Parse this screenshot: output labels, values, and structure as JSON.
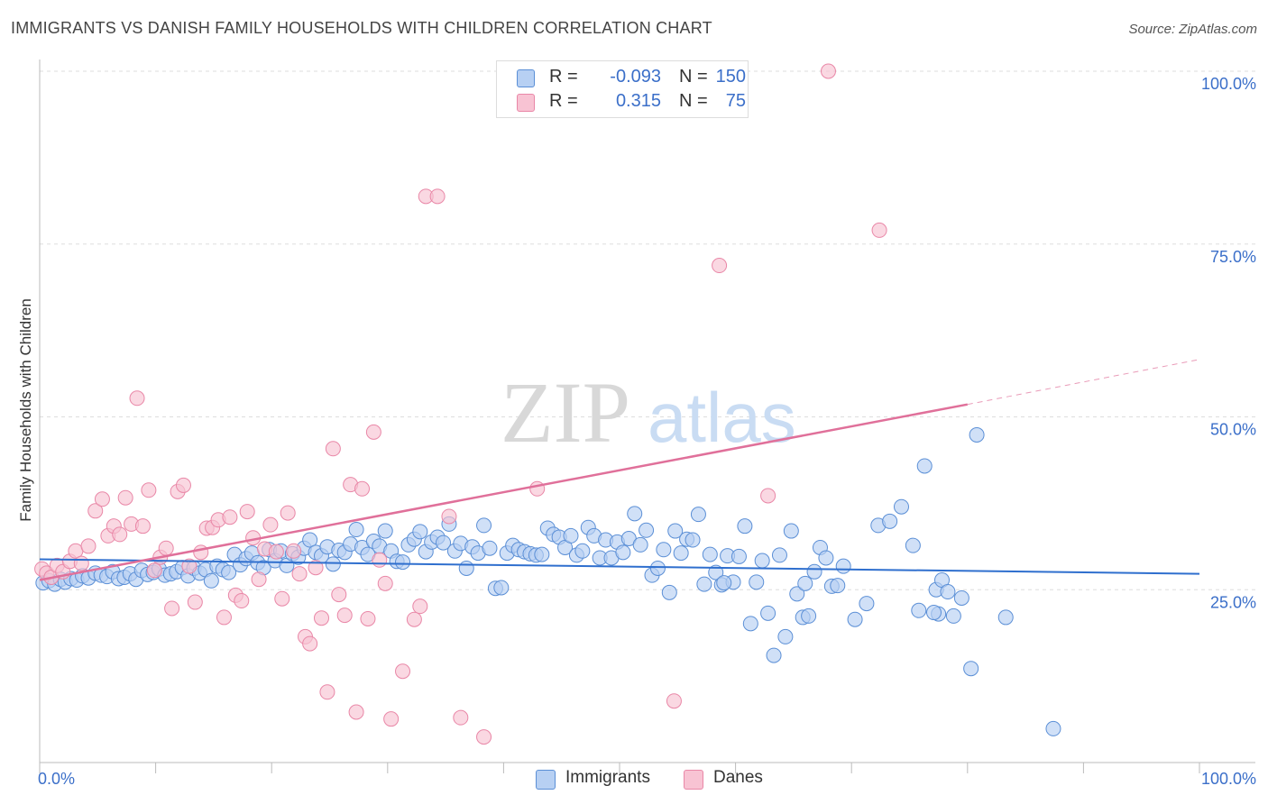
{
  "header": {
    "title": "IMMIGRANTS VS DANISH FAMILY HOUSEHOLDS WITH CHILDREN CORRELATION CHART",
    "source": "Source: ZipAtlas.com"
  },
  "legend": {
    "rows": [
      {
        "r_label": "R =",
        "r_value": "-0.093",
        "n_label": "N =",
        "n_value": "150"
      },
      {
        "r_label": "R =",
        "r_value": "0.315",
        "n_label": "N =",
        "n_value": "75"
      }
    ]
  },
  "colors": {
    "immigrants_fill": "#b7d0f3",
    "immigrants_stroke": "#5b8fd6",
    "immigrants_line": "#2f6fce",
    "danes_fill": "#f8c3d3",
    "danes_stroke": "#e987a7",
    "danes_line": "#e0709a",
    "axis_label": "#3b6fc9",
    "grid": "#dddddd"
  },
  "watermark": {
    "zip": "ZIP",
    "atlas": "atlas"
  },
  "chart_data": {
    "type": "scatter",
    "title": "IMMIGRANTS VS DANISH FAMILY HOUSEHOLDS WITH CHILDREN CORRELATION CHART",
    "xlabel": "",
    "ylabel": "Family Households with Children",
    "xlim": [
      0,
      100
    ],
    "ylim": [
      0,
      100
    ],
    "x_tick_labels": [
      "0.0%",
      "100.0%"
    ],
    "y_tick_labels": [
      "25.0%",
      "50.0%",
      "75.0%",
      "100.0%"
    ],
    "y_ticks": [
      25,
      50,
      75,
      100
    ],
    "grid": true,
    "legend_position": "bottom",
    "series": [
      {
        "name": "Immigrants",
        "r": -0.093,
        "n": 150,
        "trend": {
          "x0": 0,
          "y0": 29.4,
          "x1": 100,
          "y1": 27.3
        },
        "points": [
          [
            0.3,
            26.0
          ],
          [
            0.8,
            26.3
          ],
          [
            1.3,
            25.8
          ],
          [
            1.8,
            26.5
          ],
          [
            2.2,
            26.1
          ],
          [
            2.7,
            26.6
          ],
          [
            3.2,
            26.4
          ],
          [
            3.7,
            27.0
          ],
          [
            4.2,
            26.7
          ],
          [
            4.8,
            27.4
          ],
          [
            5.3,
            27.1
          ],
          [
            5.8,
            26.9
          ],
          [
            6.3,
            27.6
          ],
          [
            6.8,
            26.6
          ],
          [
            7.3,
            26.8
          ],
          [
            7.8,
            27.3
          ],
          [
            8.3,
            26.5
          ],
          [
            8.8,
            27.8
          ],
          [
            9.3,
            27.2
          ],
          [
            9.8,
            27.5
          ],
          [
            10.3,
            28.0
          ],
          [
            10.8,
            27.1
          ],
          [
            11.3,
            27.3
          ],
          [
            11.8,
            27.6
          ],
          [
            12.3,
            28.2
          ],
          [
            12.8,
            27.0
          ],
          [
            13.3,
            28.1
          ],
          [
            13.8,
            27.4
          ],
          [
            14.3,
            27.9
          ],
          [
            14.8,
            26.3
          ],
          [
            15.3,
            28.4
          ],
          [
            15.8,
            27.9
          ],
          [
            16.3,
            27.5
          ],
          [
            16.8,
            30.1
          ],
          [
            17.3,
            28.6
          ],
          [
            17.8,
            29.5
          ],
          [
            18.3,
            30.3
          ],
          [
            18.8,
            28.9
          ],
          [
            19.3,
            28.2
          ],
          [
            19.8,
            30.8
          ],
          [
            20.3,
            29.2
          ],
          [
            20.8,
            30.6
          ],
          [
            21.3,
            28.5
          ],
          [
            21.8,
            30.2
          ],
          [
            22.3,
            29.7
          ],
          [
            22.8,
            31.0
          ],
          [
            23.3,
            32.2
          ],
          [
            23.8,
            30.4
          ],
          [
            24.3,
            29.9
          ],
          [
            24.8,
            31.2
          ],
          [
            25.3,
            28.7
          ],
          [
            25.8,
            30.7
          ],
          [
            26.3,
            30.4
          ],
          [
            26.8,
            31.6
          ],
          [
            27.3,
            33.7
          ],
          [
            27.8,
            31.1
          ],
          [
            28.3,
            30.1
          ],
          [
            28.8,
            32.0
          ],
          [
            29.3,
            31.3
          ],
          [
            29.8,
            33.5
          ],
          [
            30.3,
            30.6
          ],
          [
            30.8,
            29.1
          ],
          [
            31.3,
            29.0
          ],
          [
            31.8,
            31.5
          ],
          [
            32.3,
            32.3
          ],
          [
            32.8,
            33.4
          ],
          [
            33.3,
            30.5
          ],
          [
            33.8,
            31.9
          ],
          [
            34.3,
            32.6
          ],
          [
            34.8,
            31.8
          ],
          [
            35.3,
            34.5
          ],
          [
            35.8,
            30.6
          ],
          [
            36.3,
            31.7
          ],
          [
            36.8,
            28.1
          ],
          [
            37.3,
            31.2
          ],
          [
            37.8,
            30.3
          ],
          [
            38.3,
            34.3
          ],
          [
            38.8,
            31.0
          ],
          [
            39.3,
            25.2
          ],
          [
            39.8,
            25.3
          ],
          [
            40.3,
            30.3
          ],
          [
            40.8,
            31.4
          ],
          [
            41.3,
            30.8
          ],
          [
            41.8,
            30.5
          ],
          [
            42.3,
            30.2
          ],
          [
            42.8,
            30.0
          ],
          [
            43.3,
            30.1
          ],
          [
            43.8,
            33.9
          ],
          [
            44.3,
            33.0
          ],
          [
            44.8,
            32.6
          ],
          [
            45.3,
            31.1
          ],
          [
            45.8,
            32.8
          ],
          [
            46.3,
            30.0
          ],
          [
            46.8,
            30.6
          ],
          [
            47.3,
            34.0
          ],
          [
            47.8,
            32.8
          ],
          [
            48.3,
            29.6
          ],
          [
            48.8,
            32.2
          ],
          [
            49.3,
            29.6
          ],
          [
            49.8,
            31.9
          ],
          [
            50.3,
            30.4
          ],
          [
            50.8,
            32.4
          ],
          [
            51.3,
            36.0
          ],
          [
            51.8,
            31.5
          ],
          [
            52.3,
            33.6
          ],
          [
            52.8,
            27.1
          ],
          [
            53.3,
            28.1
          ],
          [
            53.8,
            30.8
          ],
          [
            54.3,
            24.6
          ],
          [
            54.8,
            33.5
          ],
          [
            55.3,
            30.3
          ],
          [
            55.8,
            32.3
          ],
          [
            56.3,
            32.2
          ],
          [
            56.8,
            35.9
          ],
          [
            57.3,
            25.8
          ],
          [
            57.8,
            30.1
          ],
          [
            58.3,
            27.5
          ],
          [
            58.8,
            25.7
          ],
          [
            59.3,
            29.9
          ],
          [
            59.8,
            26.1
          ],
          [
            60.3,
            29.8
          ],
          [
            60.8,
            34.2
          ],
          [
            61.3,
            20.1
          ],
          [
            61.8,
            26.1
          ],
          [
            62.3,
            29.2
          ],
          [
            62.8,
            21.6
          ],
          [
            63.3,
            15.5
          ],
          [
            63.8,
            30.0
          ],
          [
            64.3,
            18.2
          ],
          [
            64.8,
            33.5
          ],
          [
            65.3,
            24.4
          ],
          [
            65.8,
            21.0
          ],
          [
            66.3,
            21.2
          ],
          [
            66.8,
            27.6
          ],
          [
            67.3,
            31.1
          ],
          [
            67.8,
            29.6
          ],
          [
            68.3,
            25.5
          ],
          [
            68.8,
            25.6
          ],
          [
            69.3,
            28.4
          ],
          [
            70.3,
            20.7
          ],
          [
            71.3,
            23.0
          ],
          [
            72.3,
            34.3
          ],
          [
            73.3,
            34.9
          ],
          [
            74.3,
            37.0
          ],
          [
            75.3,
            31.4
          ],
          [
            76.3,
            42.9
          ],
          [
            77.3,
            25.0
          ],
          [
            77.8,
            26.4
          ],
          [
            78.3,
            24.7
          ],
          [
            80.3,
            13.6
          ],
          [
            75.8,
            22.0
          ],
          [
            77.5,
            21.5
          ],
          [
            78.8,
            21.2
          ],
          [
            79.5,
            23.8
          ],
          [
            83.3,
            21.0
          ],
          [
            87.4,
            4.9
          ],
          [
            77.1,
            21.7
          ],
          [
            80.8,
            47.4
          ],
          [
            59.0,
            26.0
          ],
          [
            66.0,
            25.9
          ]
        ]
      },
      {
        "name": "Danes",
        "r": 0.315,
        "n": 75,
        "trend": {
          "x0": 0,
          "y0": 26.4,
          "x1": 80,
          "y1": 51.8
        },
        "trend_dashed": {
          "x0": 80,
          "y0": 51.8,
          "x1": 100,
          "y1": 58.3
        },
        "points": [
          [
            0.2,
            28.0
          ],
          [
            0.6,
            27.4
          ],
          [
            1.0,
            26.8
          ],
          [
            1.5,
            28.5
          ],
          [
            2.0,
            27.6
          ],
          [
            2.6,
            29.1
          ],
          [
            3.1,
            30.6
          ],
          [
            3.6,
            28.8
          ],
          [
            4.2,
            31.3
          ],
          [
            4.8,
            36.4
          ],
          [
            5.4,
            38.1
          ],
          [
            5.9,
            32.8
          ],
          [
            6.4,
            34.2
          ],
          [
            6.9,
            33.0
          ],
          [
            7.4,
            38.3
          ],
          [
            7.9,
            34.5
          ],
          [
            8.4,
            52.7
          ],
          [
            8.9,
            34.2
          ],
          [
            9.4,
            39.4
          ],
          [
            9.9,
            27.8
          ],
          [
            10.4,
            29.7
          ],
          [
            10.9,
            31.0
          ],
          [
            11.4,
            22.3
          ],
          [
            11.9,
            39.2
          ],
          [
            12.4,
            40.1
          ],
          [
            12.9,
            28.4
          ],
          [
            13.4,
            23.2
          ],
          [
            13.9,
            30.4
          ],
          [
            14.4,
            33.9
          ],
          [
            14.9,
            34.0
          ],
          [
            15.4,
            35.1
          ],
          [
            15.9,
            21.0
          ],
          [
            16.4,
            35.5
          ],
          [
            16.9,
            24.2
          ],
          [
            17.4,
            23.4
          ],
          [
            17.9,
            36.3
          ],
          [
            18.4,
            32.5
          ],
          [
            18.9,
            26.5
          ],
          [
            19.4,
            30.9
          ],
          [
            19.9,
            34.4
          ],
          [
            20.4,
            30.5
          ],
          [
            20.9,
            23.7
          ],
          [
            21.4,
            36.1
          ],
          [
            21.9,
            30.6
          ],
          [
            22.4,
            27.3
          ],
          [
            22.9,
            18.2
          ],
          [
            23.3,
            17.2
          ],
          [
            23.8,
            28.2
          ],
          [
            24.3,
            20.9
          ],
          [
            24.8,
            10.2
          ],
          [
            25.3,
            45.4
          ],
          [
            25.8,
            24.3
          ],
          [
            26.3,
            21.3
          ],
          [
            26.8,
            40.2
          ],
          [
            27.3,
            7.3
          ],
          [
            27.8,
            39.6
          ],
          [
            28.3,
            20.8
          ],
          [
            28.8,
            47.8
          ],
          [
            29.3,
            29.3
          ],
          [
            29.8,
            25.9
          ],
          [
            30.3,
            6.3
          ],
          [
            31.3,
            13.2
          ],
          [
            32.3,
            20.7
          ],
          [
            32.8,
            22.6
          ],
          [
            33.3,
            81.9
          ],
          [
            34.3,
            81.9
          ],
          [
            35.3,
            35.6
          ],
          [
            36.3,
            6.5
          ],
          [
            38.3,
            3.7
          ],
          [
            42.9,
            39.6
          ],
          [
            54.7,
            8.9
          ],
          [
            58.6,
            71.9
          ],
          [
            62.8,
            38.6
          ],
          [
            68.0,
            100.0
          ],
          [
            72.4,
            77.0
          ]
        ]
      }
    ]
  }
}
